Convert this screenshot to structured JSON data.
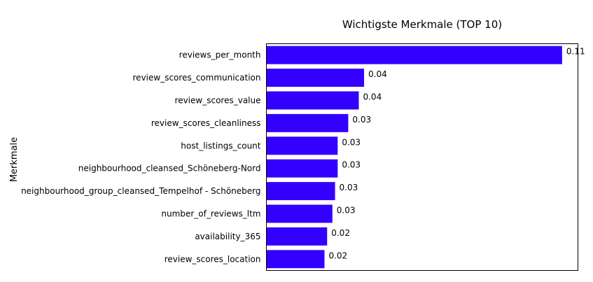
{
  "chart_data": {
    "type": "bar",
    "orientation": "horizontal",
    "title": "Wichtigste Merkmale (TOP 10)",
    "xlabel": "",
    "ylabel": "Merkmale",
    "categories": [
      "reviews_per_month",
      "review_scores_communication",
      "review_scores_value",
      "review_scores_cleanliness",
      "host_listings_count",
      "neighbourhood_cleansed_Schöneberg-Nord",
      "neighbourhood_group_cleansed_Tempelhof - Schöneberg",
      "number_of_reviews_ltm",
      "availability_365",
      "review_scores_location"
    ],
    "values": [
      0.112,
      0.037,
      0.035,
      0.031,
      0.027,
      0.027,
      0.026,
      0.025,
      0.023,
      0.022
    ],
    "value_labels": [
      "0.11",
      "0.04",
      "0.04",
      "0.03",
      "0.03",
      "0.03",
      "0.03",
      "0.03",
      "0.02",
      "0.02"
    ],
    "xlim": [
      0,
      0.118
    ],
    "bar_color": "#3300ff",
    "grid": false,
    "x_ticks_visible": false
  }
}
